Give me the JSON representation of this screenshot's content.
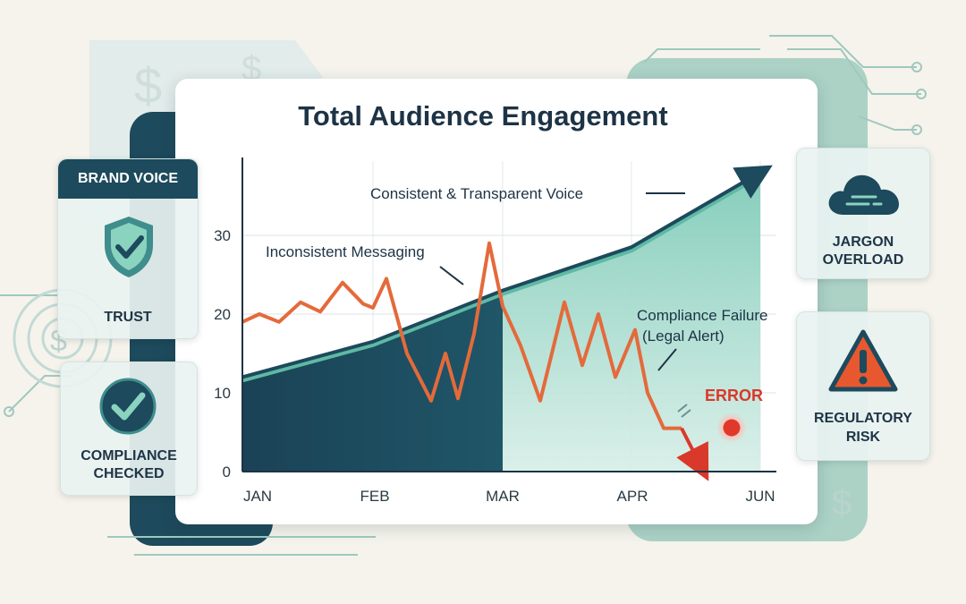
{
  "chart_data": {
    "type": "line",
    "title": "Total Audience Engagement",
    "categories": [
      "JAN",
      "FEB",
      "MAR",
      "APR",
      "JUN"
    ],
    "yticks": [
      "0",
      "10",
      "20",
      "30"
    ],
    "ylim": [
      0,
      40
    ],
    "series": [
      {
        "values": [
          12,
          16.5,
          23,
          28.5,
          38
        ],
        "color": "#1d4a5c",
        "fill": "#7fcbb8"
      },
      {
        "values": [
          19,
          16,
          29,
          15,
          -1
        ],
        "color": "#e46a3b"
      }
    ],
    "annotations": {
      "consistent": "Consistent & Transparent Voice",
      "inconsistent": "Inconsistent Messaging",
      "compliance_line1": "Compliance Failure",
      "compliance_line2": "(Legal Alert)",
      "error": "ERROR"
    }
  },
  "panels": {
    "brand_voice": "BRAND VOICE",
    "trust": "TRUST",
    "compliance_line1": "COMPLIANCE",
    "compliance_line2": "CHECKED",
    "jargon_line1": "JARGON",
    "jargon_line2": "OVERLOAD",
    "regulatory_line1": "REGULATORY",
    "regulatory_line2": "RISK"
  },
  "icons": [
    "shield-check-icon",
    "check-circle-icon",
    "cloud-icon",
    "warning-triangle-icon",
    "dollar-icon",
    "circuit-icon"
  ],
  "colors": {
    "navy": "#1d4a5c",
    "teal": "#7fcbb8",
    "orange": "#e46a3b",
    "error_red": "#d9392b"
  }
}
